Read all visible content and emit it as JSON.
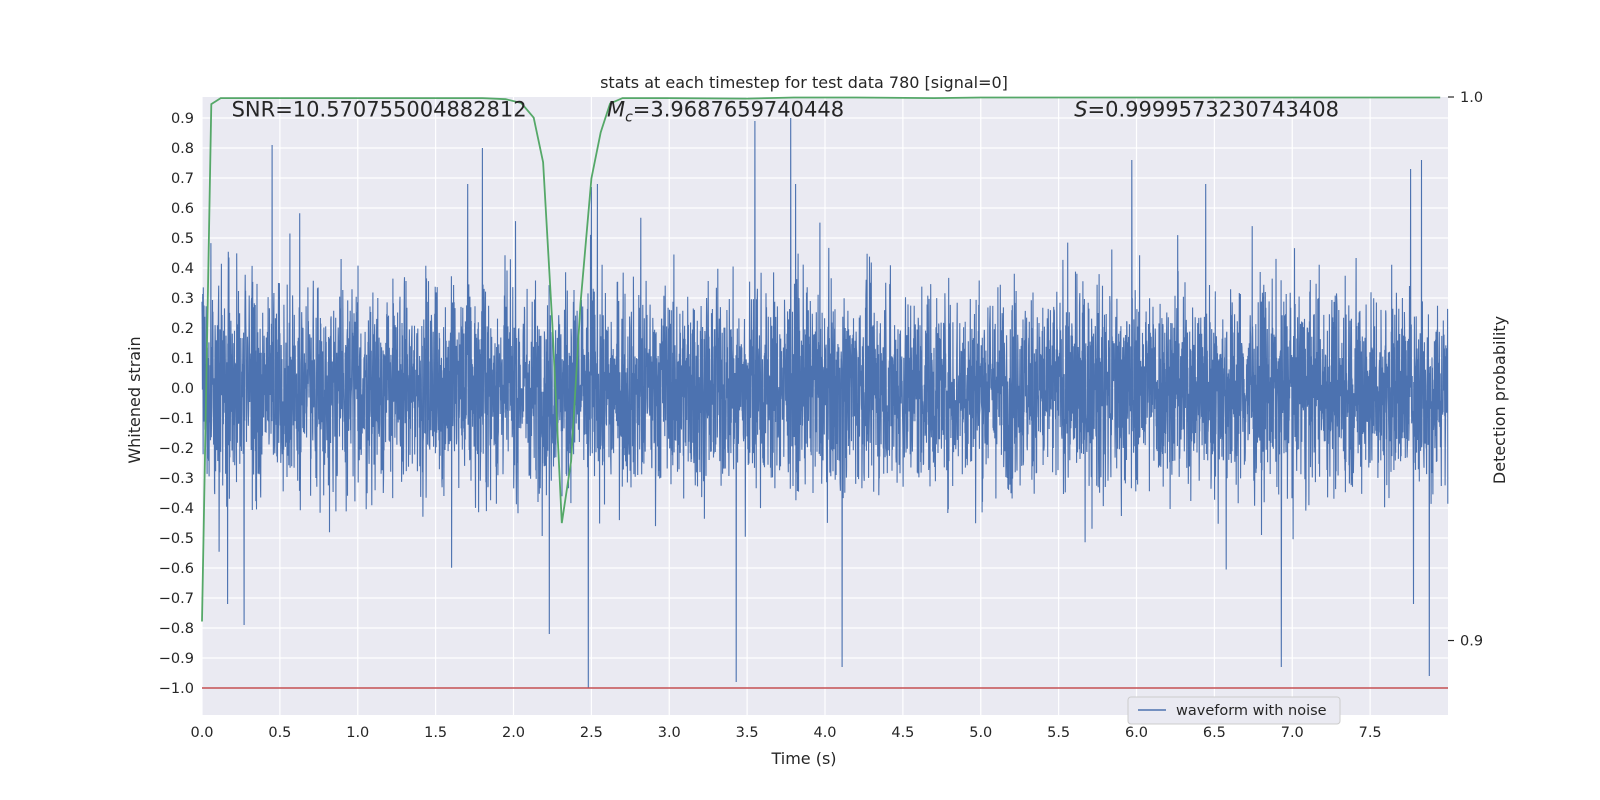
{
  "chart_data": {
    "type": "line",
    "title": "stats at each timestep for test data 780 [signal=0]",
    "xlabel": "Time (s)",
    "ylabel": "Whitened strain",
    "y2label": "Detection probability",
    "xlim": [
      0.0,
      8.0
    ],
    "ylim": [
      -1.09,
      0.97
    ],
    "y2lim": [
      0.8863,
      1.0
    ],
    "x_ticks": [
      "0.0",
      "0.5",
      "1.0",
      "1.5",
      "2.0",
      "2.5",
      "3.0",
      "3.5",
      "4.0",
      "4.5",
      "5.0",
      "5.5",
      "6.0",
      "6.5",
      "7.0",
      "7.5"
    ],
    "y_ticks": [
      "0.9",
      "0.8",
      "0.7",
      "0.6",
      "0.5",
      "0.4",
      "0.3",
      "0.2",
      "0.1",
      "0.0",
      "-0.1",
      "-0.2",
      "-0.3",
      "-0.4",
      "-0.5",
      "-0.6",
      "-0.7",
      "-0.8",
      "-0.9",
      "-1.0"
    ],
    "y2_ticks": [
      "1.0",
      "0.9"
    ],
    "annotations": [
      {
        "key": "snr",
        "label": "SNR=10.570755004882812",
        "x": 0.19,
        "y": 0.905
      },
      {
        "key": "mc",
        "label": "M_c=3.9687659740448",
        "x": 2.6,
        "y": 0.905
      },
      {
        "key": "s",
        "label": "S=0.9999573230743408",
        "x": 5.6,
        "y": 0.905
      }
    ],
    "legend": {
      "position": "lower-right",
      "entries": [
        "waveform with noise"
      ]
    },
    "grid": true,
    "threshold_line": {
      "y": -1.0,
      "color": "#c44e52"
    },
    "series": [
      {
        "name": "waveform with noise",
        "axis": "left",
        "color": "#4c72b0",
        "sample_rate": 2048,
        "duration": 8.0,
        "typical_amplitude": 0.3,
        "peaks": [
          {
            "x": 0.45,
            "y": 0.81
          },
          {
            "x": 1.8,
            "y": 0.8
          },
          {
            "x": 2.23,
            "y": -0.82
          },
          {
            "x": 2.48,
            "y": -1.0
          },
          {
            "x": 2.5,
            "y": 0.67
          },
          {
            "x": 3.43,
            "y": -0.98
          },
          {
            "x": 3.55,
            "y": 0.89
          },
          {
            "x": 3.78,
            "y": 0.9
          },
          {
            "x": 4.11,
            "y": -0.93
          },
          {
            "x": 6.93,
            "y": -0.93
          },
          {
            "x": 7.83,
            "y": 0.76
          },
          {
            "x": 7.88,
            "y": -0.96
          },
          {
            "x": 0.27,
            "y": -0.79
          },
          {
            "x": 5.97,
            "y": 0.76
          },
          {
            "x": 7.76,
            "y": 0.73
          }
        ]
      },
      {
        "name": "",
        "axis": "right",
        "color": "#55a868",
        "x": [
          0.0,
          0.06,
          0.12,
          0.5,
          1.0,
          1.5,
          1.8,
          1.95,
          2.05,
          2.13,
          2.19,
          2.25,
          2.31,
          2.37,
          2.43,
          2.5,
          2.56,
          2.62,
          2.7,
          3.0,
          3.5,
          3.8,
          4.2,
          4.7,
          5.0,
          6.0,
          7.0,
          7.95
        ],
        "y": [
          0.9035,
          0.9987,
          0.9998,
          0.9998,
          0.9998,
          0.9998,
          0.9998,
          0.9996,
          0.9989,
          0.9962,
          0.988,
          0.958,
          0.9216,
          0.933,
          0.962,
          0.985,
          0.9935,
          0.9988,
          0.9998,
          0.9998,
          0.9997,
          0.9999,
          0.9999,
          0.9998,
          0.9999,
          0.9999,
          0.9999,
          0.9999
        ]
      }
    ]
  }
}
